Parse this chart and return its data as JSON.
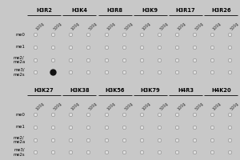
{
  "top_groups": [
    "H3R2",
    "H3K4",
    "H3R8",
    "H3K9",
    "H3R17",
    "H3R26"
  ],
  "bottom_groups": [
    "H3K27",
    "H3K38",
    "H3K56",
    "H3K79",
    "H4R3",
    "H4K20"
  ],
  "row_labels": [
    "me0",
    "me1",
    "me2/\nme2a",
    "me3/\nme2s"
  ],
  "col_sublabels": [
    "100g",
    "500g"
  ],
  "background_color": "#c8c8c8",
  "panel_bg_color": "#d0d0d0",
  "dot_empty_facecolor": "#e0e0e0",
  "dot_empty_edgecolor": "#888888",
  "dot_filled_color": "#111111",
  "filled_dot_top": {
    "group": 0,
    "row": 3,
    "col": 1
  },
  "group_label_fontsize": 4.8,
  "sublabel_fontsize": 3.5,
  "row_label_fontsize": 3.8,
  "dot_size_empty": 3.2,
  "dot_size_filled": 5.0,
  "line_color": "#222222",
  "line_width": 0.7
}
